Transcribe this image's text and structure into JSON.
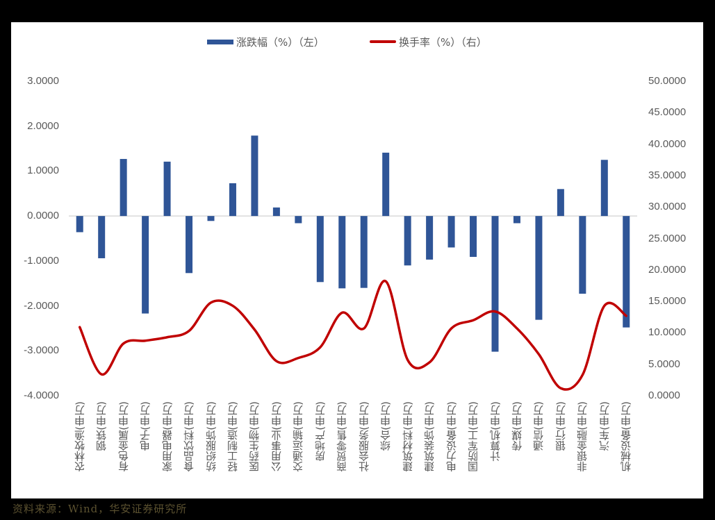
{
  "legend": {
    "bar_label": "涨跌幅（%）（左）",
    "line_label": "换手率（%）（右）"
  },
  "axes": {
    "left_ticks": [
      "3.0000",
      "2.0000",
      "1.0000",
      "0.0000",
      "-1.0000",
      "-2.0000",
      "-3.0000",
      "-4.0000"
    ],
    "right_ticks": [
      "50.0000",
      "45.0000",
      "40.0000",
      "35.0000",
      "30.0000",
      "25.0000",
      "20.0000",
      "15.0000",
      "10.0000",
      "5.0000",
      "0.0000"
    ]
  },
  "footer": {
    "source": "资料来源：Wind，华安证券研究所"
  },
  "colors": {
    "bar": "#2F5597",
    "line": "#C00000",
    "axis_line": "#D9D9D9",
    "text": "#595959"
  },
  "chart_data": {
    "type": "bar+line",
    "title": "",
    "categories": [
      "农林牧渔(申万)",
      "钢铁(申万)",
      "有色金属(申万)",
      "电子(申万)",
      "家用电器(申万)",
      "食品饮料(申万)",
      "纺织服饰(申万)",
      "轻工制造(申万)",
      "医药生物(申万)",
      "公用事业(申万)",
      "交通运输(申万)",
      "房地产(申万)",
      "商贸零售(申万)",
      "社会服务(申万)",
      "综合(申万)",
      "建筑材料(申万)",
      "建筑装饰(申万)",
      "电力设备(申万)",
      "国防军工(申万)",
      "计算机(申万)",
      "传媒(申万)",
      "通信(申万)",
      "银行(申万)",
      "非银金融(申万)",
      "汽车(申万)",
      "机械设备(申万)"
    ],
    "series": [
      {
        "name": "涨跌幅（%）（左）",
        "type": "bar",
        "axis": "left",
        "values": [
          -0.36,
          -0.94,
          1.27,
          -2.17,
          1.21,
          -1.27,
          -0.11,
          0.73,
          1.79,
          0.19,
          -0.16,
          -1.47,
          -1.61,
          -1.6,
          1.41,
          -1.1,
          -0.97,
          -0.7,
          -0.91,
          -3.02,
          -0.16,
          -2.31,
          0.6,
          -1.73,
          1.25,
          -2.48
        ]
      },
      {
        "name": "换手率（%）（右）",
        "type": "line",
        "axis": "right",
        "smooth": true,
        "values": [
          10.9,
          3.4,
          8.3,
          8.75,
          9.3,
          10.3,
          14.8,
          14.3,
          10.5,
          5.5,
          6.0,
          7.7,
          13.2,
          10.7,
          18.2,
          5.7,
          5.3,
          10.7,
          12.0,
          13.4,
          10.7,
          6.6,
          1.2,
          3.3,
          14.3,
          12.7
        ]
      }
    ],
    "left_axis": {
      "ylim": [
        -4,
        3
      ],
      "tick_step": 1
    },
    "right_axis": {
      "ylim": [
        0,
        50
      ],
      "tick_step": 5
    },
    "grid": false,
    "legend_position": "top"
  }
}
